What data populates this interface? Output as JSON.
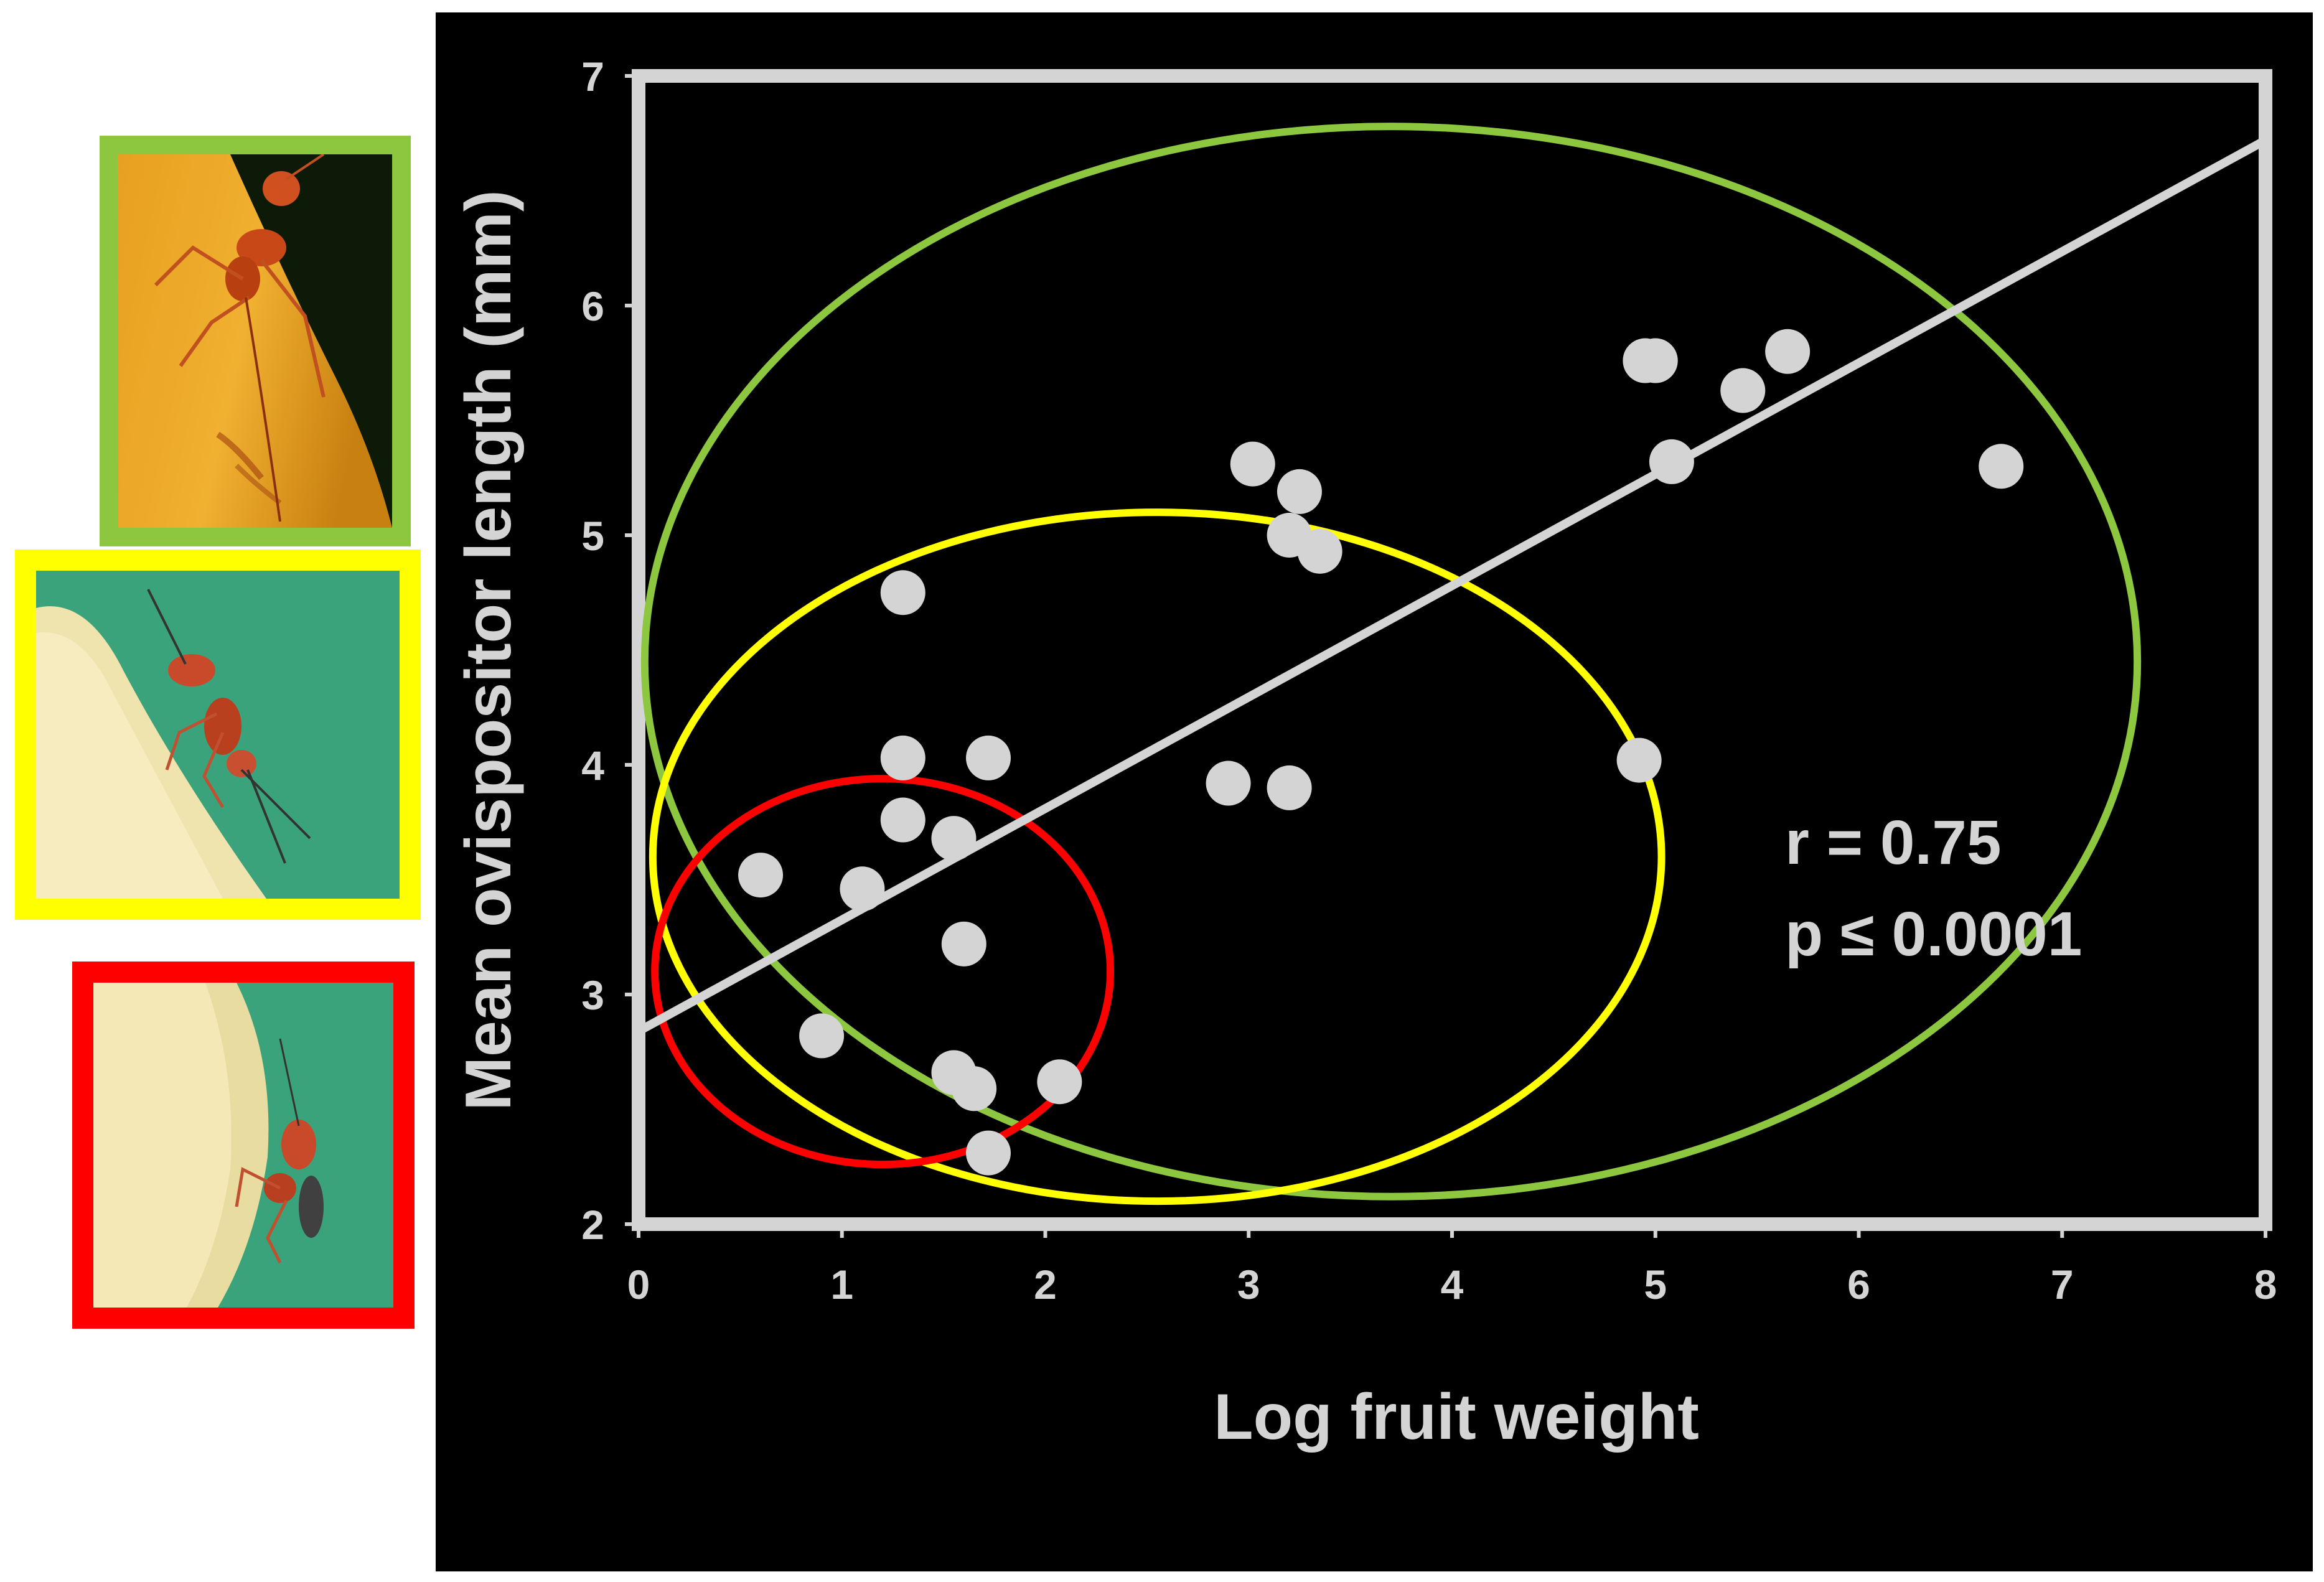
{
  "chart_data": {
    "type": "scatter",
    "xlabel": "Log fruit weight",
    "ylabel": "Mean ovispositor length (mm)",
    "xlim": [
      0,
      8
    ],
    "ylim": [
      2,
      7
    ],
    "x_ticks": [
      "0",
      "1",
      "2",
      "3",
      "4",
      "5",
      "6",
      "7",
      "8"
    ],
    "y_ticks": [
      "2",
      "3",
      "4",
      "5",
      "6",
      "7"
    ],
    "grid": false,
    "legend": "none",
    "annotations": {
      "r": "r = 0.75",
      "p": "p ≤ 0.0001"
    },
    "series": [
      {
        "points": [
          [
            0.6,
            3.52
          ],
          [
            0.9,
            2.82
          ],
          [
            1.1,
            3.46
          ],
          [
            1.3,
            4.75
          ],
          [
            1.3,
            4.03
          ],
          [
            1.3,
            3.76
          ],
          [
            1.55,
            3.68
          ],
          [
            1.6,
            3.22
          ],
          [
            1.55,
            2.66
          ],
          [
            1.65,
            2.59
          ],
          [
            1.72,
            2.31
          ],
          [
            1.72,
            4.03
          ],
          [
            2.07,
            2.62
          ],
          [
            2.9,
            3.92
          ],
          [
            3.2,
            3.9
          ],
          [
            3.02,
            5.31
          ],
          [
            3.25,
            5.19
          ],
          [
            3.2,
            5.0
          ],
          [
            3.35,
            4.93
          ],
          [
            4.92,
            4.02
          ],
          [
            4.95,
            5.76
          ],
          [
            5.0,
            5.76
          ],
          [
            5.08,
            5.32
          ],
          [
            5.43,
            5.63
          ],
          [
            5.65,
            5.8
          ],
          [
            6.7,
            5.3
          ]
        ]
      }
    ],
    "regression_line": {
      "x": [
        0,
        8
      ],
      "y": [
        2.84,
        6.72
      ]
    },
    "ellipses": [
      {
        "color": "#8dc63f",
        "cx": 3.7,
        "cy": 4.45,
        "rx": 3.67,
        "ry": 2.33
      },
      {
        "color": "#ffff00",
        "cx": 2.55,
        "cy": 3.6,
        "rx": 2.48,
        "ry": 1.5
      },
      {
        "color": "#ff0000",
        "cx": 1.2,
        "cy": 3.1,
        "rx": 1.12,
        "ry": 0.84
      }
    ],
    "colors": {
      "background": "#000000",
      "foreground": "#d4d4d4"
    }
  },
  "images": [
    {
      "name": "wasp-on-fruit-large",
      "frame_color": "#8dc63f"
    },
    {
      "name": "wasp-on-fruit-medium",
      "frame_color": "#ffff00"
    },
    {
      "name": "wasp-on-fruit-small",
      "frame_color": "#ff0000"
    }
  ]
}
